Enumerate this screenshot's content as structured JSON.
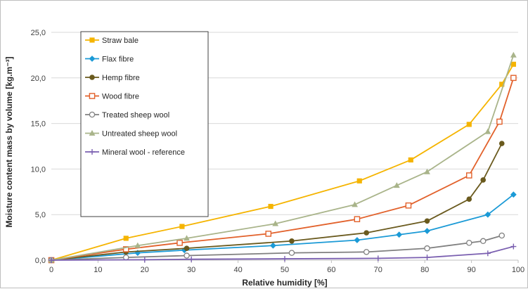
{
  "chart_data": {
    "type": "line",
    "xlabel": "Relative humidity [%]",
    "ylabel": "Moisture content mass by volume [kg.m⁻³]",
    "xlim": [
      0,
      100
    ],
    "ylim": [
      0,
      25
    ],
    "x_ticks": [
      "0",
      "10",
      "20",
      "30",
      "40",
      "50",
      "60",
      "70",
      "80",
      "90",
      "100"
    ],
    "y_ticks": [
      "0,0",
      "5,0",
      "10,0",
      "15,0",
      "20,0",
      "25,0"
    ],
    "grid": "horizontal",
    "legend_position": "top-left",
    "series": [
      {
        "name": "Straw bale",
        "color": "#f5b400",
        "marker": "square-filled",
        "x": [
          0,
          16,
          28,
          47,
          66,
          77,
          89.5,
          96.5,
          99
        ],
        "y": [
          0,
          2.4,
          3.7,
          5.9,
          8.7,
          11.0,
          14.9,
          19.3,
          21.5
        ]
      },
      {
        "name": "Flax fibre",
        "color": "#1b9ad6",
        "marker": "diamond-filled",
        "x": [
          0,
          18.5,
          28.5,
          47.5,
          65.5,
          74.5,
          80.5,
          93.5,
          99
        ],
        "y": [
          0,
          0.8,
          1.1,
          1.6,
          2.2,
          2.8,
          3.2,
          5.0,
          7.2
        ]
      },
      {
        "name": "Hemp fibre",
        "color": "#6a5a1e",
        "marker": "circle-filled",
        "x": [
          0,
          16,
          29,
          51.5,
          67.5,
          80.5,
          89.5,
          92.5,
          96.5
        ],
        "y": [
          0,
          0.9,
          1.3,
          2.1,
          3.0,
          4.3,
          6.7,
          8.8,
          12.8
        ]
      },
      {
        "name": "Wood fibre",
        "color": "#e2612b",
        "marker": "square-open",
        "x": [
          0,
          16,
          27.5,
          46.5,
          65.5,
          76.5,
          89.5,
          96,
          99
        ],
        "y": [
          0,
          1.2,
          1.9,
          2.9,
          4.5,
          6.0,
          9.3,
          15.2,
          20.0
        ]
      },
      {
        "name": "Treated sheep wool",
        "color": "#808080",
        "marker": "circle-open",
        "x": [
          0,
          16,
          29,
          51.5,
          67.5,
          80.5,
          89.5,
          92.5,
          96.5
        ],
        "y": [
          0,
          0.3,
          0.5,
          0.8,
          0.9,
          1.3,
          1.9,
          2.1,
          2.7
        ]
      },
      {
        "name": "Untreated  sheep wool",
        "color": "#a9b48a",
        "marker": "triangle-filled",
        "x": [
          0,
          18.5,
          29,
          48,
          65,
          74,
          80.5,
          93.5,
          99
        ],
        "y": [
          0,
          1.6,
          2.4,
          4.0,
          6.1,
          8.2,
          9.7,
          14.1,
          22.5
        ]
      },
      {
        "name": "Mineral wool - reference",
        "color": "#7a5fb0",
        "marker": "plus",
        "x": [
          0,
          20,
          30,
          50,
          70,
          80.5,
          93.5,
          99
        ],
        "y": [
          0,
          0.05,
          0.1,
          0.15,
          0.2,
          0.3,
          0.75,
          1.5
        ]
      }
    ]
  }
}
